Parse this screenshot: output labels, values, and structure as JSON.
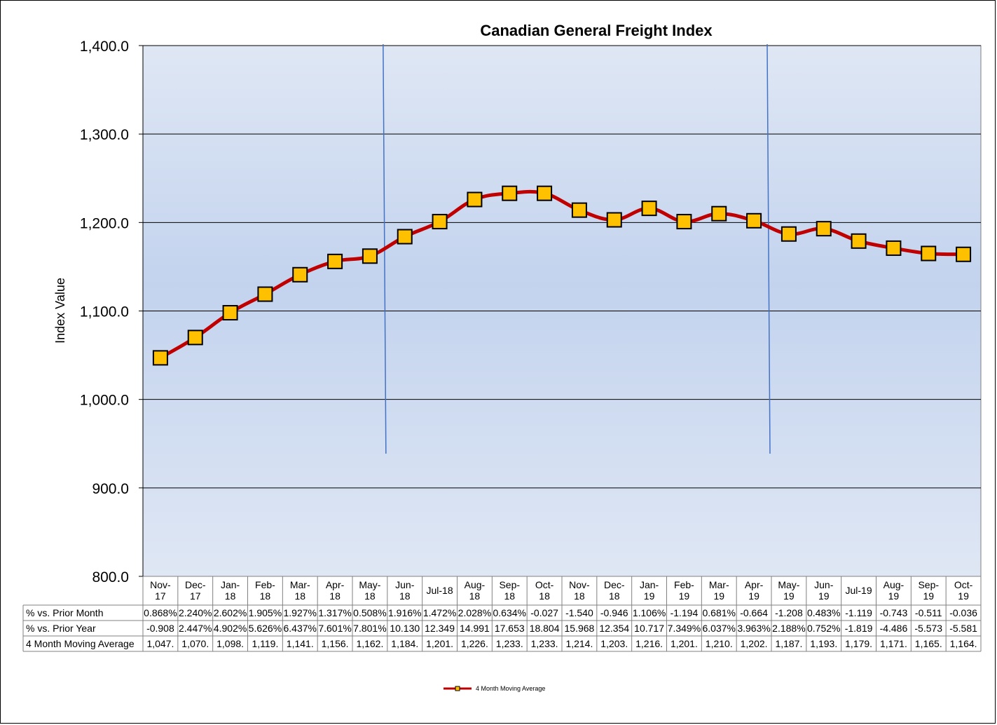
{
  "colors": {
    "line": "#c00000",
    "marker_fill": "#ffc000",
    "marker_stroke": "#000000",
    "plot_bg_top": "#dfe7f4",
    "plot_bg_mid": "#c3d3ee",
    "gridline": "#000000",
    "vline": "#4472c4"
  },
  "chart_data": {
    "type": "line",
    "title": "Canadian General Freight Index",
    "ylabel": "Index Value",
    "xlabel": "",
    "ylim": [
      800,
      1400
    ],
    "yticks": [
      "800.0",
      "900.0",
      "1,000.0",
      "1,100.0",
      "1,200.0",
      "1,300.0",
      "1,400.0"
    ],
    "ytick_values": [
      800,
      900,
      1000,
      1100,
      1200,
      1300,
      1400
    ],
    "grid": true,
    "legend_position": "bottom-center",
    "categories": [
      [
        "Nov-",
        "17"
      ],
      [
        "Dec-",
        "17"
      ],
      [
        "Jan-",
        "18"
      ],
      [
        "Feb-",
        "18"
      ],
      [
        "Mar-",
        "18"
      ],
      [
        "Apr-",
        "18"
      ],
      [
        "May-",
        "18"
      ],
      [
        "Jun-",
        "18"
      ],
      [
        "Jul-18"
      ],
      [
        "Aug-",
        "18"
      ],
      [
        "Sep-",
        "18"
      ],
      [
        "Oct-",
        "18"
      ],
      [
        "Nov-",
        "18"
      ],
      [
        "Dec-",
        "18"
      ],
      [
        "Jan-",
        "19"
      ],
      [
        "Feb-",
        "19"
      ],
      [
        "Mar-",
        "19"
      ],
      [
        "Apr-",
        "19"
      ],
      [
        "May-",
        "19"
      ],
      [
        "Jun-",
        "19"
      ],
      [
        "Jul-19"
      ],
      [
        "Aug-",
        "19"
      ],
      [
        "Sep-",
        "19"
      ],
      [
        "Oct-",
        "19"
      ]
    ],
    "vertical_markers_after": [
      "May-18",
      "Apr-19"
    ],
    "series": [
      {
        "name": "4 Month Moving Average",
        "values": [
          1047,
          1070,
          1098,
          1119,
          1141,
          1156,
          1162,
          1184,
          1201,
          1226,
          1233,
          1233,
          1214,
          1203,
          1216,
          1201,
          1210,
          1202,
          1187,
          1193,
          1179,
          1171,
          1165,
          1164
        ]
      }
    ],
    "table": {
      "rows": [
        {
          "label": "% vs. Prior Month",
          "cells": [
            "0.868%",
            "2.240%",
            "2.602%",
            "1.905%",
            "1.927%",
            "1.317%",
            "0.508%",
            "1.916%",
            "1.472%",
            "2.028%",
            "0.634%",
            "-0.027",
            "-1.540",
            "-0.946",
            "1.106%",
            "-1.194",
            "0.681%",
            "-0.664",
            "-1.208",
            "0.483%",
            "-1.119",
            "-0.743",
            "-0.511",
            "-0.036"
          ]
        },
        {
          "label": "% vs. Prior Year",
          "cells": [
            "-0.908",
            "2.447%",
            "4.902%",
            "5.626%",
            "6.437%",
            "7.601%",
            "7.801%",
            "10.130",
            "12.349",
            "14.991",
            "17.653",
            "18.804",
            "15.968",
            "12.354",
            "10.717",
            "7.349%",
            "6.037%",
            "3.963%",
            "2.188%",
            "0.752%",
            "-1.819",
            "-4.486",
            "-5.573",
            "-5.581"
          ]
        },
        {
          "label": "4 Month Moving Average",
          "cells": [
            "1,047.",
            "1,070.",
            "1,098.",
            "1,119.",
            "1,141.",
            "1,156.",
            "1,162.",
            "1,184.",
            "1,201.",
            "1,226.",
            "1,233.",
            "1,233.",
            "1,214.",
            "1,203.",
            "1,216.",
            "1,201.",
            "1,210.",
            "1,202.",
            "1,187.",
            "1,193.",
            "1,179.",
            "1,171.",
            "1,165.",
            "1,164."
          ]
        }
      ]
    }
  }
}
